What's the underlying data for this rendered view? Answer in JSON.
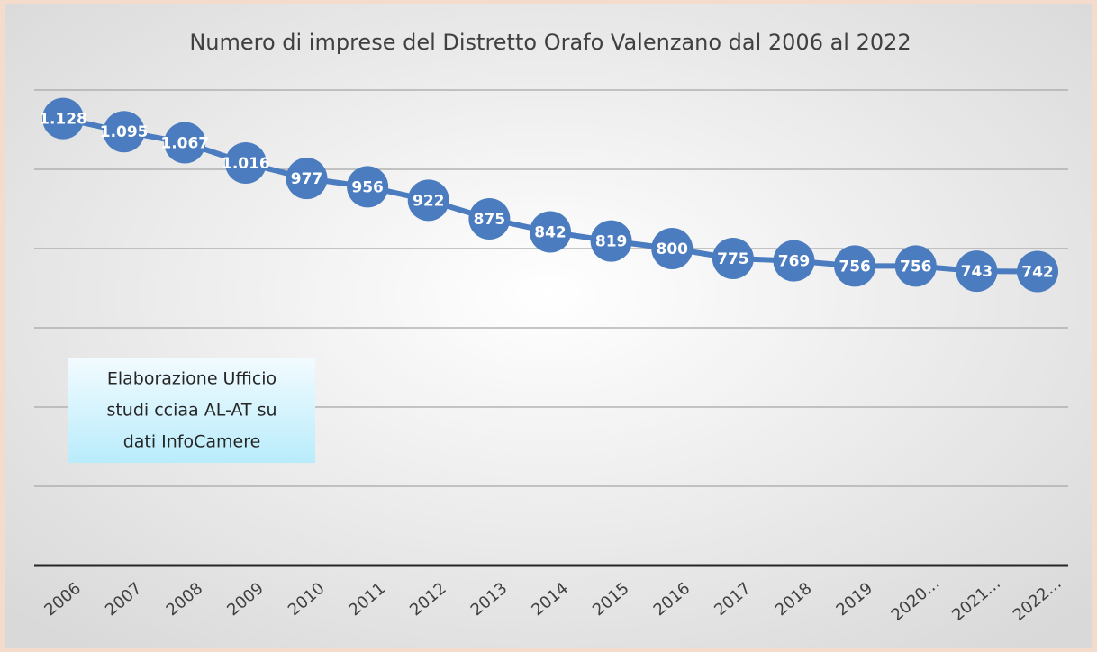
{
  "chart_data": {
    "type": "line",
    "title": "Numero di imprese del Distretto Orafo Valenzano dal 2006 al 2022",
    "categories": [
      "2006",
      "2007",
      "2008",
      "2009",
      "2010",
      "2011",
      "2012",
      "2013",
      "2014",
      "2015",
      "2016",
      "2017",
      "2018",
      "2019",
      "2020...",
      "2021...",
      "2022..."
    ],
    "series": [
      {
        "name": "Numero di imprese",
        "color": "#4a7cbf",
        "values": [
          1128,
          1095,
          1067,
          1016,
          977,
          956,
          922,
          875,
          842,
          819,
          800,
          775,
          769,
          756,
          756,
          743,
          742
        ],
        "value_labels": [
          "1.128",
          "1.095",
          "1.067",
          "1.016",
          "977",
          "956",
          "922",
          "875",
          "842",
          "819",
          "800",
          "775",
          "769",
          "756",
          "756",
          "743",
          "742"
        ]
      }
    ],
    "ylim": [
      0,
      1200
    ],
    "yticks": [
      0,
      200,
      400,
      600,
      800,
      1000,
      1200
    ],
    "grid": true,
    "annotation": [
      "Elaborazione Ufficio",
      "studi cciaa AL-AT su",
      "dati InfoCamere"
    ]
  }
}
